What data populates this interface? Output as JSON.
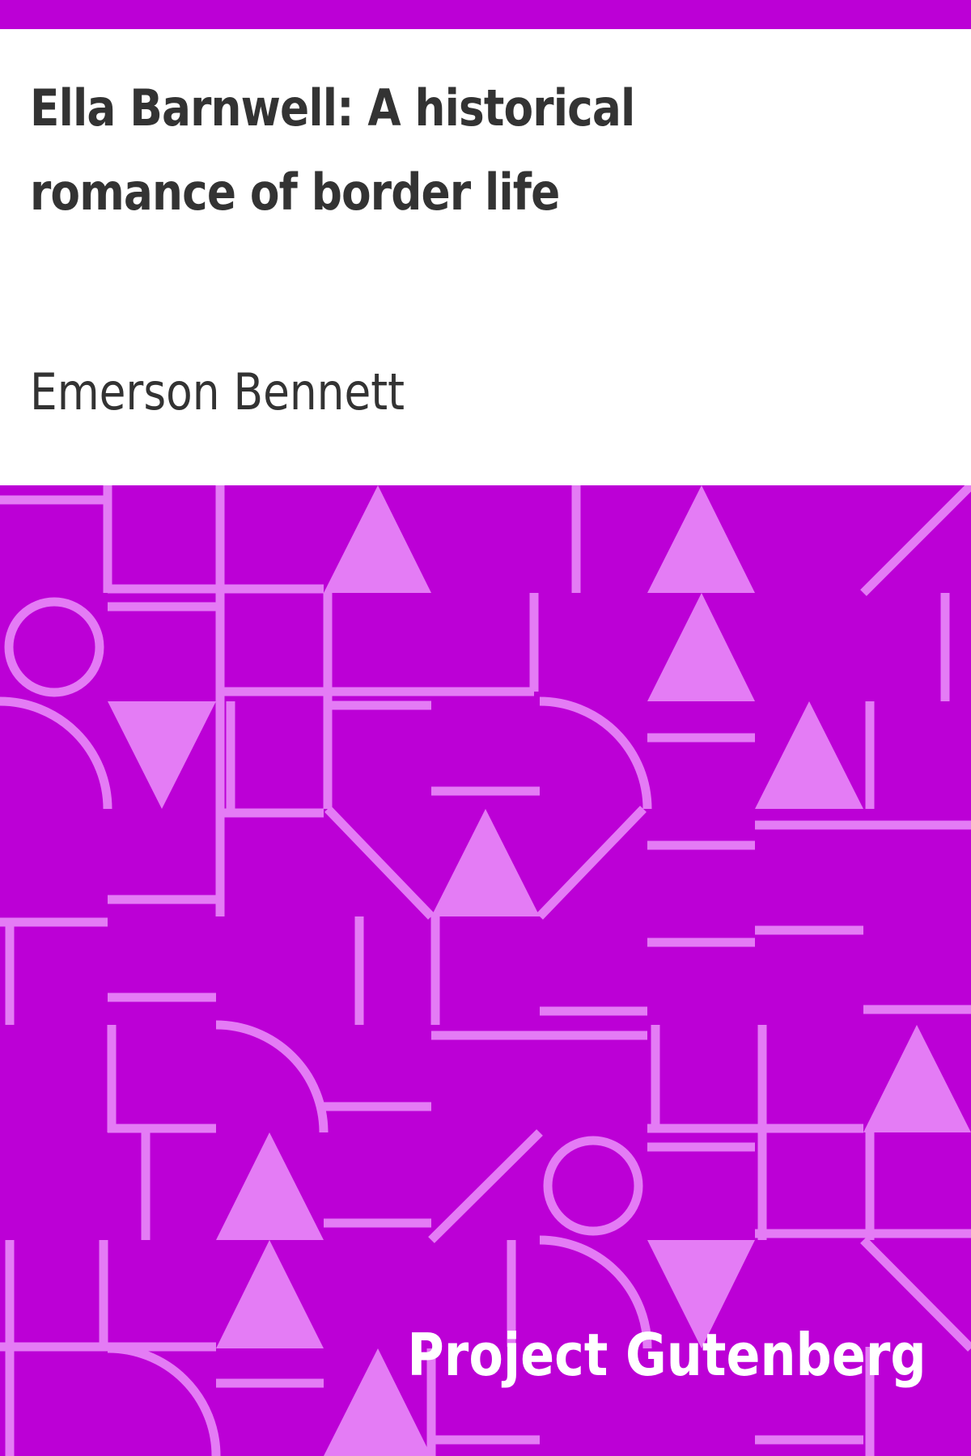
{
  "cover": {
    "title": "Ella Barnwell: A historical romance of border life",
    "author": "Emerson Bennett",
    "publisher": "Project Gutenberg"
  },
  "colors": {
    "band": "#bc00d6",
    "pattern_background": "#bc00d6",
    "pattern_shapes": "#e47cf5",
    "text_dark": "#333333",
    "text_light": "#ffffff",
    "page_background": "#ffffff"
  },
  "pattern": {
    "shapes": [
      "line",
      "triangle",
      "circle",
      "arc"
    ]
  }
}
